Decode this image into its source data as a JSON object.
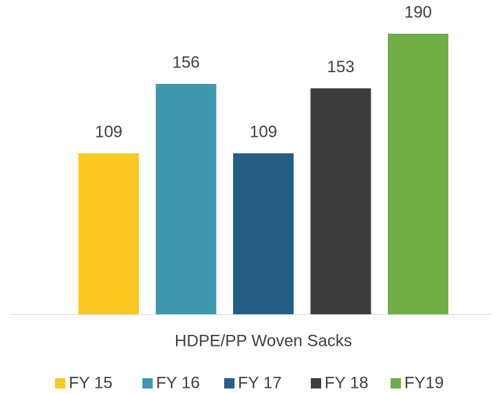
{
  "chart_data": {
    "type": "bar",
    "categories": [
      "HDPE/PP Woven Sacks"
    ],
    "series": [
      {
        "name": "FY 15",
        "color": "#fcc823",
        "values": [
          109
        ]
      },
      {
        "name": "FY 16",
        "color": "#3f97ab",
        "values": [
          156
        ]
      },
      {
        "name": "FY 17",
        "color": "#255e86",
        "values": [
          109
        ]
      },
      {
        "name": "FY 18",
        "color": "#3d3d3d",
        "values": [
          153
        ]
      },
      {
        "name": "FY19",
        "color": "#70ad47",
        "values": [
          190
        ]
      }
    ],
    "ylim": [
      0,
      200
    ],
    "legend": "bottom"
  }
}
